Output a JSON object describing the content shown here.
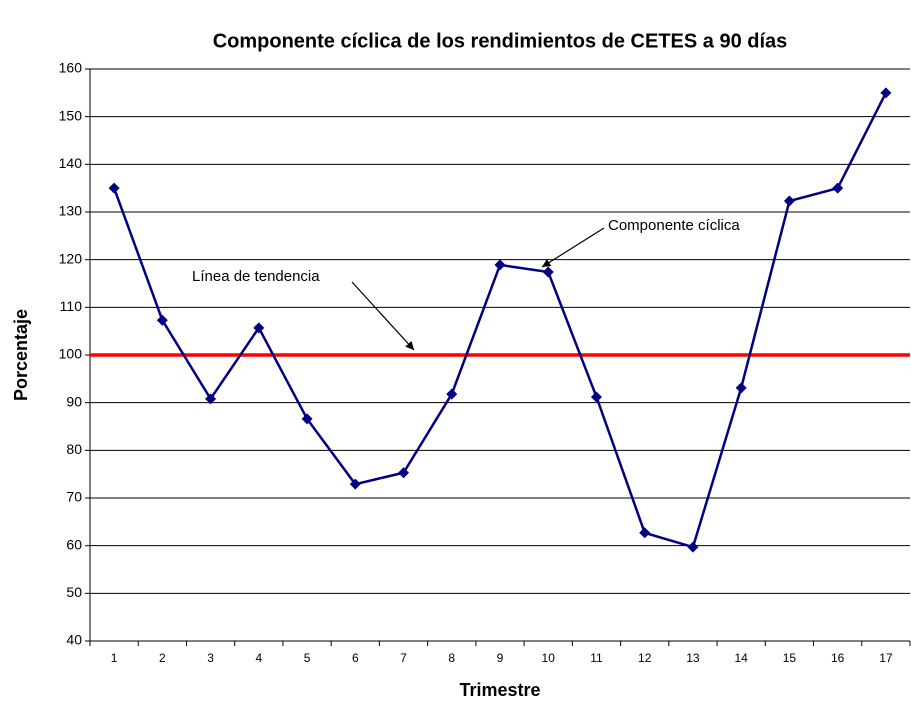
{
  "chart_data": {
    "type": "line",
    "title": "Componente cíclica de los rendimientos de CETES a 90 días",
    "x_label": "Trimestre",
    "y_label": "Porcentaje",
    "categories": [
      "1",
      "2",
      "3",
      "4",
      "5",
      "6",
      "7",
      "8",
      "9",
      "10",
      "11",
      "12",
      "13",
      "14",
      "15",
      "16",
      "17"
    ],
    "series": [
      {
        "color": "#000080",
        "values": [
          135.0,
          107.3,
          90.8,
          105.7,
          86.6,
          72.9,
          75.3,
          91.8,
          118.9,
          117.4,
          91.2,
          62.7,
          59.7,
          93.1,
          132.3,
          135.0,
          155.0
        ]
      }
    ],
    "trend": {
      "value": 100,
      "color": "#ff0000"
    },
    "annotations": [
      "Componente cíclica",
      "Línea de tendencia"
    ],
    "ylim": [
      40,
      160
    ],
    "yticks": [
      40,
      50,
      60,
      70,
      80,
      90,
      100,
      110,
      120,
      130,
      140,
      150,
      160
    ],
    "grid": true
  }
}
